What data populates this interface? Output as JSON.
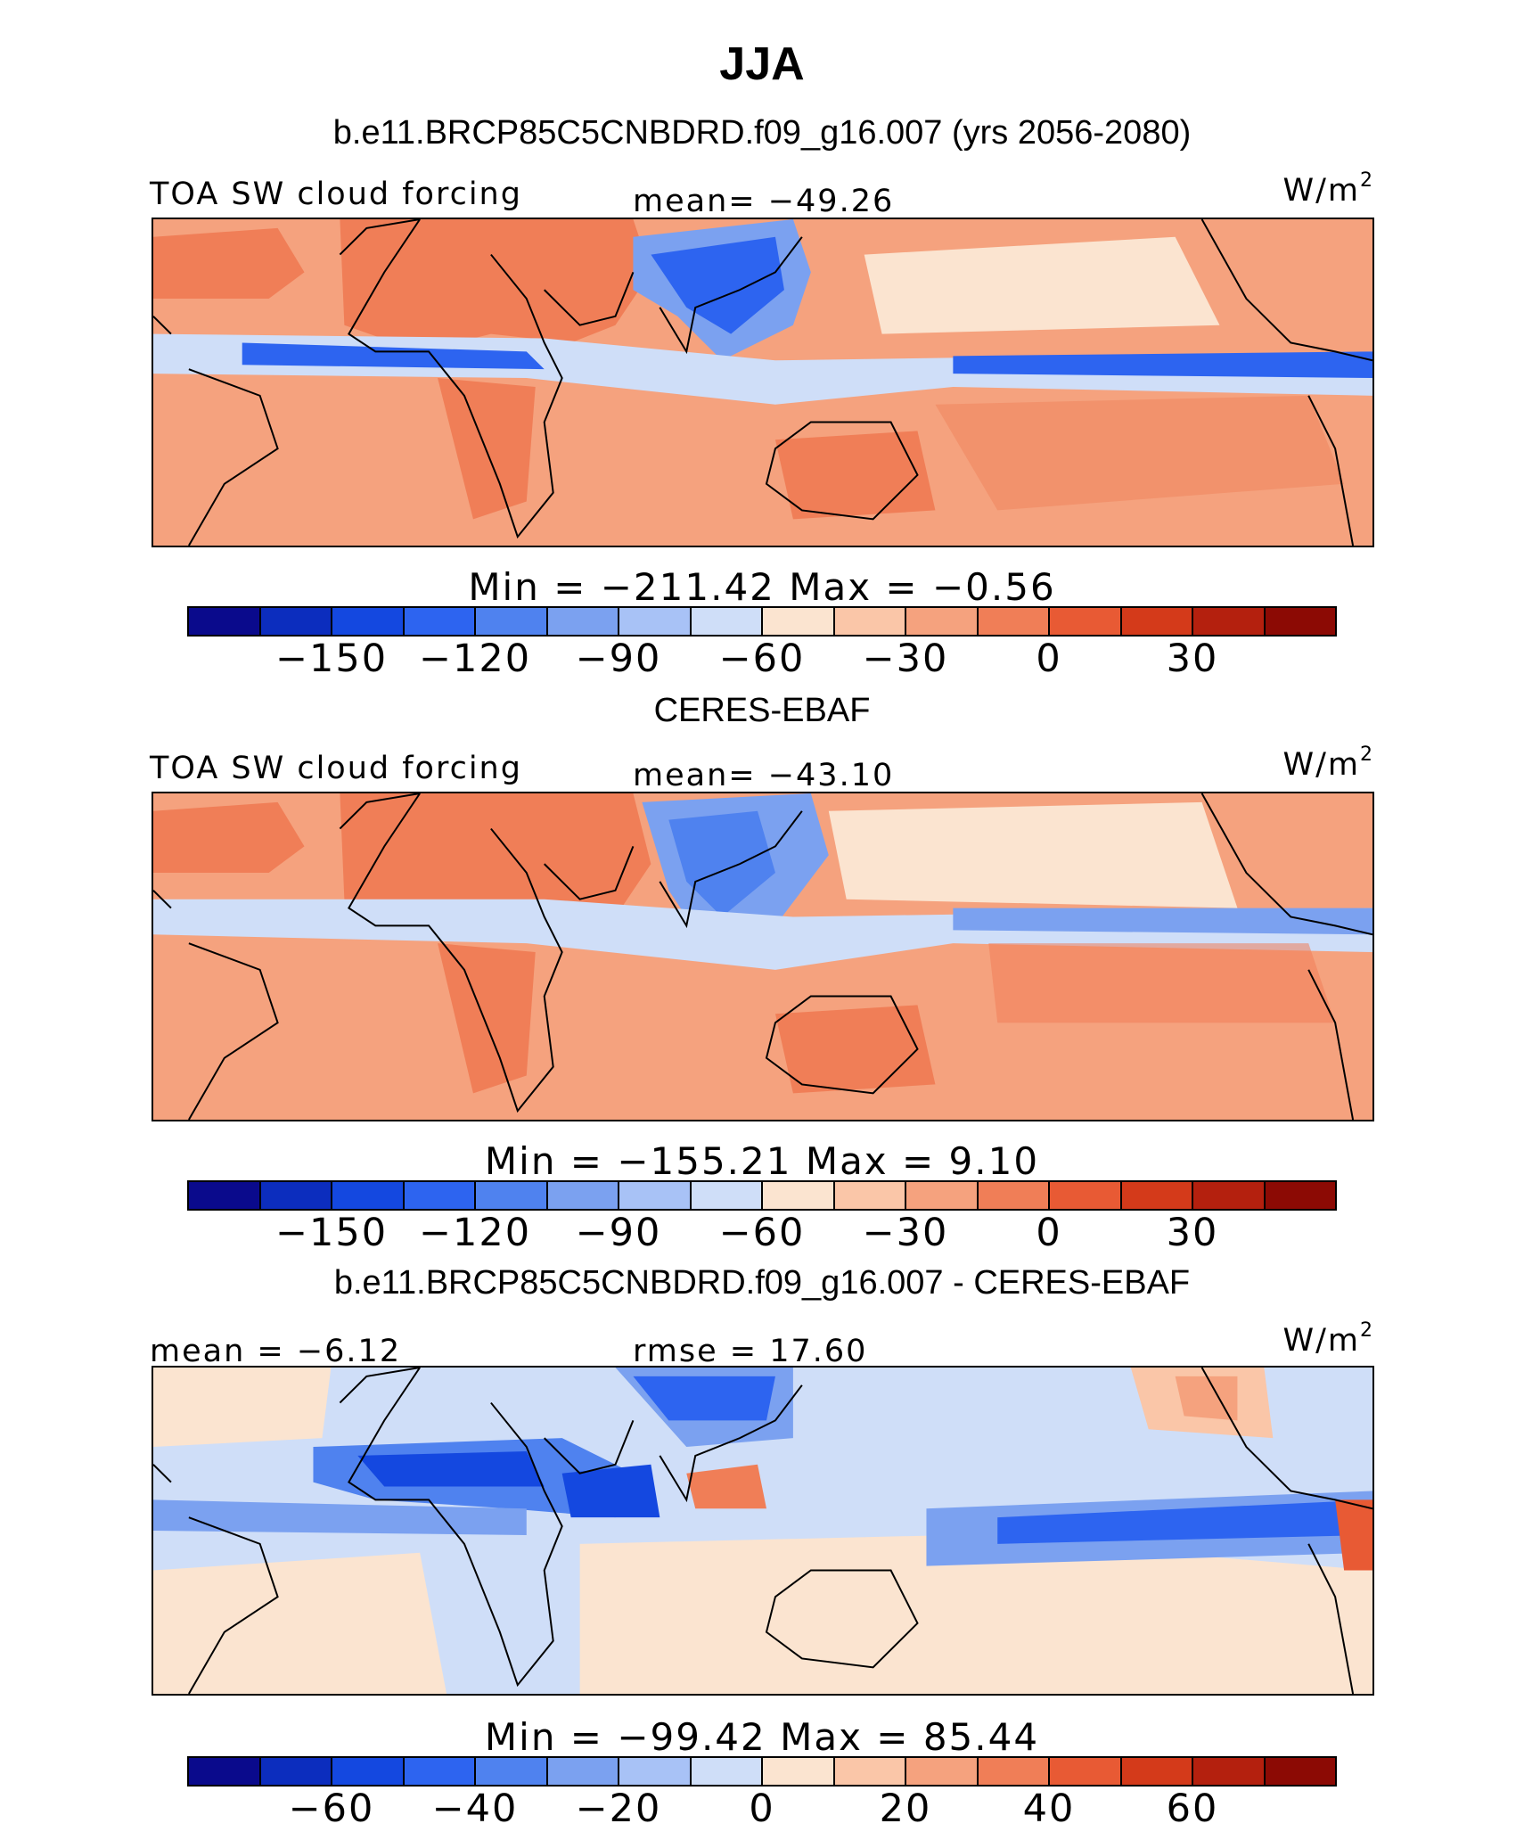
{
  "title": "JJA",
  "colors": [
    "#0a0a8c",
    "#0c2dbe",
    "#1448e0",
    "#2d64f0",
    "#4f82ef",
    "#7ba1f0",
    "#a8c2f6",
    "#cfdef8",
    "#fbe4d0",
    "#fac6a8",
    "#f5a27e",
    "#f07e57",
    "#e85a34",
    "#d43a1a",
    "#b4200e",
    "#8c0a04"
  ],
  "panels": [
    {
      "title": "b.e11.BRCP85C5CNBDRD.f09_g16.007 (yrs 2056-2080)",
      "left_label": "TOA SW cloud forcing",
      "center_label": "mean=  −49.26",
      "units": "W/m",
      "units_sup": "2",
      "minmax": "Min  =  −211.42  Max  =   −0.56",
      "ticks": [
        "−150",
        "−120",
        "−90",
        "−60",
        "−30",
        "0",
        "30"
      ]
    },
    {
      "title": "CERES-EBAF",
      "left_label": "TOA SW cloud forcing",
      "center_label": "mean=  −43.10",
      "units": "W/m",
      "units_sup": "2",
      "minmax": "Min  =  −155.21  Max  =     9.10",
      "ticks": [
        "−150",
        "−120",
        "−90",
        "−60",
        "−30",
        "0",
        "30"
      ]
    },
    {
      "title": "b.e11.BRCP85C5CNBDRD.f09_g16.007 - CERES-EBAF",
      "left_label": "mean  =   −6.12",
      "center_label": "rmse  =   17.60",
      "units": "W/m",
      "units_sup": "2",
      "minmax": "Min  =  −99.42  Max  =   85.44",
      "ticks": [
        "−60",
        "−40",
        "−20",
        "0",
        "20",
        "40",
        "60"
      ]
    }
  ],
  "chart_data": [
    {
      "type": "heatmap",
      "title": "b.e11.BRCP85C5CNBDRD.f09_g16.007 (yrs 2056-2080)",
      "variable": "TOA SW cloud forcing",
      "units": "W/m2",
      "mean": -49.26,
      "min": -211.42,
      "max": -0.56,
      "colorbar_levels": [
        -165,
        -150,
        -135,
        -120,
        -105,
        -90,
        -75,
        -60,
        -45,
        -30,
        -15,
        0,
        15,
        30,
        45
      ],
      "colorbar_ticks": [
        -150,
        -120,
        -90,
        -60,
        -30,
        0,
        30
      ]
    },
    {
      "type": "heatmap",
      "title": "CERES-EBAF",
      "variable": "TOA SW cloud forcing",
      "units": "W/m2",
      "mean": -43.1,
      "min": -155.21,
      "max": 9.1,
      "colorbar_levels": [
        -165,
        -150,
        -135,
        -120,
        -105,
        -90,
        -75,
        -60,
        -45,
        -30,
        -15,
        0,
        15,
        30,
        45
      ],
      "colorbar_ticks": [
        -150,
        -120,
        -90,
        -60,
        -30,
        0,
        30
      ]
    },
    {
      "type": "heatmap",
      "title": "b.e11.BRCP85C5CNBDRD.f09_g16.007 - CERES-EBAF",
      "units": "W/m2",
      "mean": -6.12,
      "rmse": 17.6,
      "min": -99.42,
      "max": 85.44,
      "colorbar_levels": [
        -70,
        -60,
        -50,
        -40,
        -30,
        -20,
        -10,
        0,
        10,
        20,
        30,
        40,
        50,
        60,
        70
      ],
      "colorbar_ticks": [
        -60,
        -40,
        -20,
        0,
        20,
        40,
        60
      ]
    }
  ]
}
